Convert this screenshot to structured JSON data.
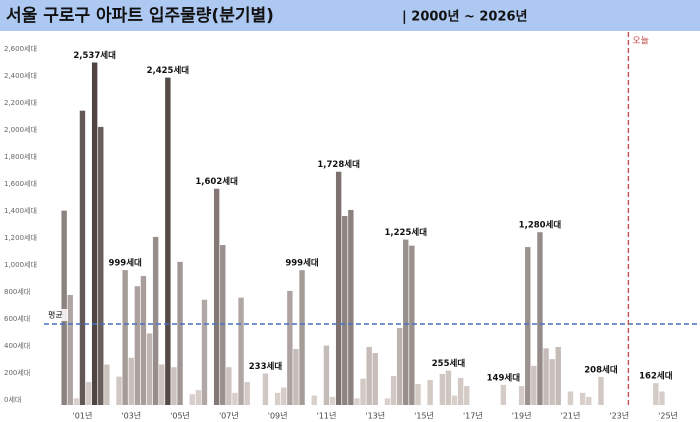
{
  "chart_data": {
    "type": "bar",
    "title": "서울 구로구 아파트 입주물량(분기별)",
    "subtitle": "| 2000년 ~ 2026년",
    "categories": [
      null,
      null,
      null,
      null,
      "'01년",
      null,
      null,
      null,
      null,
      null,
      null,
      null,
      "'03년",
      null,
      null,
      null,
      null,
      null,
      null,
      null,
      "'05년",
      null,
      null,
      null,
      null,
      null,
      null,
      null,
      "'07년",
      null,
      null,
      null,
      null,
      null,
      null,
      null,
      "'09년",
      null,
      null,
      null,
      null,
      null,
      null,
      null,
      "'11년",
      null,
      null,
      null,
      null,
      null,
      null,
      null,
      "'13년",
      null,
      null,
      null,
      null,
      null,
      null,
      null,
      "'15년",
      null,
      null,
      null,
      null,
      null,
      null,
      null,
      "'17년",
      null,
      null,
      null,
      null,
      null,
      null,
      null,
      "'19년",
      null,
      null,
      null,
      null,
      null,
      null,
      null,
      "'21년",
      null,
      null,
      null,
      null,
      null,
      null,
      null,
      "'23년",
      null,
      null,
      null,
      null,
      null,
      null,
      null,
      "'25년",
      null,
      null,
      null,
      null,
      null,
      null,
      null
    ],
    "values": [
      null,
      1440,
      815,
      50,
      2180,
      170,
      2537,
      2060,
      300,
      null,
      210,
      999,
      350,
      880,
      955,
      530,
      1245,
      300,
      2425,
      280,
      1060,
      null,
      80,
      110,
      780,
      null,
      1602,
      1185,
      280,
      90,
      795,
      170,
      null,
      null,
      233,
      null,
      90,
      130,
      845,
      415,
      999,
      null,
      70,
      null,
      440,
      60,
      1728,
      1400,
      1445,
      50,
      195,
      430,
      385,
      null,
      50,
      215,
      570,
      1225,
      1180,
      155,
      null,
      185,
      null,
      230,
      255,
      70,
      200,
      140,
      null,
      null,
      null,
      null,
      null,
      149,
      null,
      null,
      140,
      1170,
      290,
      1280,
      420,
      340,
      430,
      null,
      100,
      null,
      90,
      60,
      null,
      208,
      null,
      null,
      null,
      null,
      null,
      null,
      null,
      null,
      162,
      100,
      null,
      null,
      null,
      null,
      null,
      null,
      null,
      null
    ],
    "value_labels": [
      null,
      null,
      null,
      null,
      null,
      null,
      "2,537세대",
      null,
      null,
      null,
      null,
      "999세대",
      null,
      null,
      null,
      null,
      null,
      null,
      "2,425세대",
      null,
      null,
      null,
      null,
      null,
      null,
      null,
      "1,602세대",
      null,
      null,
      null,
      null,
      null,
      null,
      null,
      "233세대",
      null,
      null,
      null,
      null,
      null,
      "999세대",
      null,
      null,
      null,
      null,
      null,
      "1,728세대",
      null,
      null,
      null,
      null,
      null,
      null,
      null,
      null,
      null,
      null,
      "1,225세대",
      null,
      null,
      null,
      null,
      null,
      null,
      "255세대",
      null,
      null,
      null,
      null,
      null,
      null,
      null,
      null,
      "149세대",
      null,
      null,
      null,
      null,
      null,
      "1,280세대",
      null,
      null,
      null,
      null,
      null,
      null,
      null,
      null,
      null,
      "208세대",
      null,
      null,
      null,
      null,
      null,
      null,
      null,
      null,
      "162세대",
      null,
      null,
      null,
      null,
      null,
      null,
      null,
      null,
      null
    ],
    "color_scale": [
      "#ddd3cf",
      "#4b403e"
    ],
    "ylim": [
      0,
      2600
    ],
    "yticks": [
      {
        "value": 0,
        "label": "0세대"
      },
      {
        "value": 200,
        "label": "200세대"
      },
      {
        "value": 400,
        "label": "400세대"
      },
      {
        "value": 600,
        "label": "600세대"
      },
      {
        "value": 800,
        "label": "800세대"
      },
      {
        "value": 1000,
        "label": "1,000세대"
      },
      {
        "value": 1200,
        "label": "1,200세대"
      },
      {
        "value": 1400,
        "label": "1,400세대"
      },
      {
        "value": 1600,
        "label": "1,600세대"
      },
      {
        "value": 1800,
        "label": "1,800세대"
      },
      {
        "value": 2000,
        "label": "2,000세대"
      },
      {
        "value": 2200,
        "label": "2,200세대"
      },
      {
        "value": 2400,
        "label": "2,400세대"
      },
      {
        "value": 2600,
        "label": "2,600세대"
      }
    ],
    "grid": false,
    "average": {
      "label": "평균",
      "value": 600,
      "color": "#4472c4"
    },
    "today": {
      "label": "오늘",
      "index": 94,
      "color": "#c0504d"
    }
  }
}
